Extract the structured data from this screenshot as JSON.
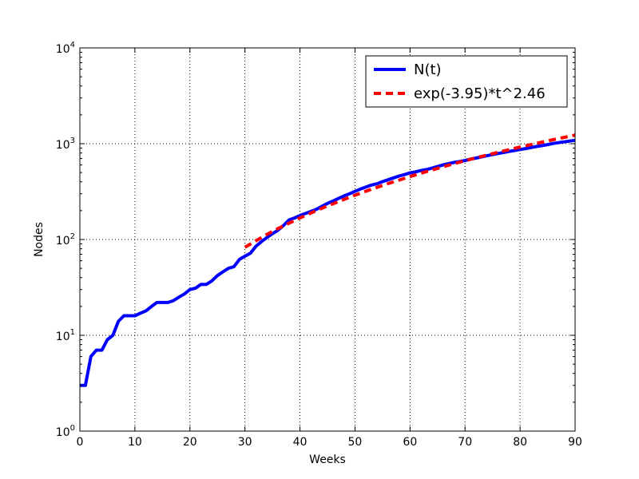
{
  "chart_data": {
    "type": "line",
    "title": "",
    "xlabel": "Weeks",
    "ylabel": "Nodes",
    "xlim": [
      0,
      90
    ],
    "ylim": [
      1,
      10000
    ],
    "yscale": "log",
    "grid": true,
    "legend_position": "top-right",
    "x_ticks": [
      "0",
      "10",
      "20",
      "30",
      "40",
      "50",
      "60",
      "70",
      "80",
      "90"
    ],
    "y_ticks": [
      {
        "base": "10",
        "exp": "0"
      },
      {
        "base": "10",
        "exp": "1"
      },
      {
        "base": "10",
        "exp": "2"
      },
      {
        "base": "10",
        "exp": "3"
      },
      {
        "base": "10",
        "exp": "4"
      }
    ],
    "series": [
      {
        "name": "N(t)",
        "color": "#0000ff",
        "style": "solid",
        "x": [
          0,
          1,
          2,
          3,
          4,
          5,
          6,
          7,
          8,
          9,
          10,
          11,
          12,
          13,
          14,
          15,
          16,
          17,
          18,
          19,
          20,
          21,
          22,
          23,
          24,
          25,
          26,
          27,
          28,
          29,
          30,
          31,
          32,
          33,
          34,
          35,
          36,
          37,
          38,
          39,
          40,
          41,
          42,
          43,
          44,
          45,
          46,
          47,
          48,
          49,
          50,
          51,
          52,
          53,
          54,
          55,
          56,
          57,
          58,
          59,
          60,
          61,
          62,
          63,
          64,
          65,
          66,
          67,
          68,
          69,
          70,
          71,
          72,
          73,
          74,
          75,
          76,
          77,
          78,
          79,
          80,
          81,
          82,
          83,
          84,
          85,
          86,
          87,
          88,
          89,
          90
        ],
        "y": [
          3,
          3,
          6,
          7,
          7,
          9,
          10,
          14,
          16,
          16,
          16,
          17,
          18,
          20,
          22,
          22,
          22,
          23,
          25,
          27,
          30,
          31,
          34,
          34,
          37,
          42,
          46,
          50,
          52,
          62,
          67,
          72,
          85,
          95,
          105,
          115,
          125,
          140,
          160,
          168,
          178,
          187,
          196,
          207,
          222,
          238,
          252,
          268,
          285,
          300,
          318,
          336,
          353,
          370,
          382,
          402,
          420,
          440,
          460,
          476,
          495,
          508,
          525,
          537,
          556,
          578,
          600,
          620,
          638,
          652,
          668,
          690,
          708,
          728,
          748,
          770,
          790,
          810,
          830,
          850,
          870,
          890,
          912,
          935,
          955,
          980,
          1005,
          1025,
          1045,
          1065,
          1085
        ]
      },
      {
        "name": "exp(-3.95)*t^2.46",
        "color": "#ff0000",
        "style": "dashed",
        "x": [
          30,
          32,
          34,
          36,
          38,
          40,
          42,
          44,
          46,
          48,
          50,
          52,
          54,
          56,
          58,
          60,
          62,
          64,
          66,
          68,
          70,
          72,
          74,
          76,
          78,
          80,
          82,
          84,
          86,
          88,
          90
        ],
        "y": [
          83,
          97,
          113,
          130,
          148,
          168,
          189,
          212,
          236,
          262,
          290,
          319,
          350,
          383,
          417,
          454,
          492,
          532,
          574,
          618,
          664,
          711,
          761,
          813,
          866,
          922,
          979,
          1039,
          1101,
          1164,
          1230
        ]
      }
    ]
  }
}
